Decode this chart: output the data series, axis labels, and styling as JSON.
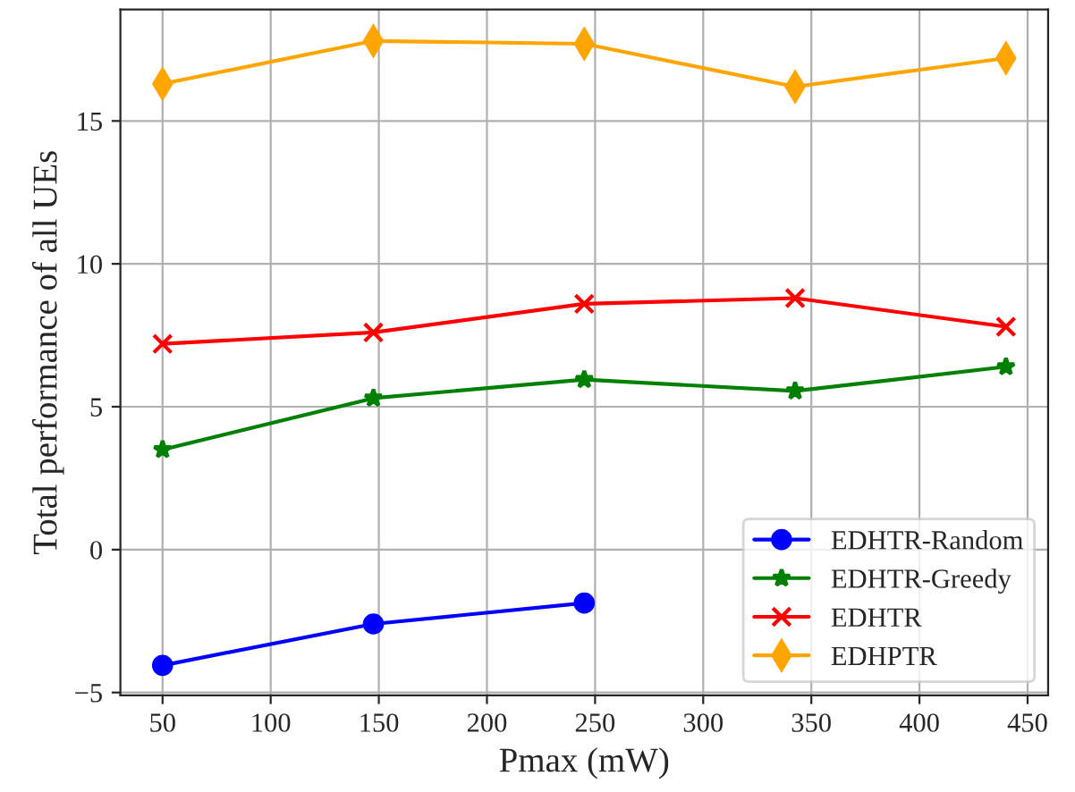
{
  "chart_data": {
    "type": "line",
    "xlabel": "Pmax (mW)",
    "ylabel": "Total performance of all UEs",
    "x": [
      50,
      147.5,
      245,
      342.5,
      440
    ],
    "xlim": [
      30.5,
      459.5
    ],
    "xticks": [
      50,
      100,
      150,
      200,
      250,
      300,
      350,
      400,
      450
    ],
    "ylim": [
      -5.1,
      18.9
    ],
    "yticks": [
      {
        "value": -5,
        "label": "−5"
      },
      0,
      5,
      10,
      15
    ],
    "grid": true,
    "legend": "bottom right",
    "line_style": "solid",
    "series": [
      {
        "name": "EDHTR-Random",
        "color": "#0000ff",
        "marker": "circle",
        "values": [
          -4.05,
          -2.6,
          -1.87,
          null,
          null
        ]
      },
      {
        "name": "EDHTR-Greedy",
        "color": "#008000",
        "marker": "star",
        "values": [
          3.5,
          5.3,
          5.95,
          5.55,
          6.4
        ]
      },
      {
        "name": "EDHTR",
        "color": "#ff0000",
        "marker": "cross",
        "values": [
          7.2,
          7.6,
          8.6,
          8.8,
          7.8
        ]
      },
      {
        "name": "EDHPTR",
        "color": "#ffa500",
        "marker": "diamond",
        "values": [
          16.3,
          17.8,
          17.7,
          16.2,
          17.2
        ]
      }
    ]
  }
}
